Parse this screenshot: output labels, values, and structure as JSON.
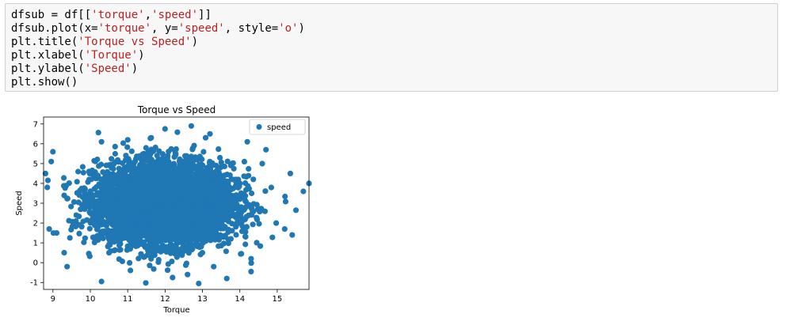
{
  "code_cell": {
    "lines": [
      [
        {
          "t": "dfsub = df[[",
          "k": "plain"
        },
        {
          "t": "'torque'",
          "k": "str"
        },
        {
          "t": ",",
          "k": "plain"
        },
        {
          "t": "'speed'",
          "k": "str"
        },
        {
          "t": "]]",
          "k": "plain"
        }
      ],
      [
        {
          "t": "dfsub.plot(x=",
          "k": "plain"
        },
        {
          "t": "'torque'",
          "k": "str"
        },
        {
          "t": ", y=",
          "k": "plain"
        },
        {
          "t": "'speed'",
          "k": "str"
        },
        {
          "t": ", style=",
          "k": "plain"
        },
        {
          "t": "'o'",
          "k": "str"
        },
        {
          "t": ")",
          "k": "plain"
        }
      ],
      [
        {
          "t": "plt.title(",
          "k": "plain"
        },
        {
          "t": "'Torque vs Speed'",
          "k": "str"
        },
        {
          "t": ")",
          "k": "plain"
        }
      ],
      [
        {
          "t": "plt.xlabel(",
          "k": "plain"
        },
        {
          "t": "'Torque'",
          "k": "str"
        },
        {
          "t": ")",
          "k": "plain"
        }
      ],
      [
        {
          "t": "plt.ylabel(",
          "k": "plain"
        },
        {
          "t": "'Speed'",
          "k": "str"
        },
        {
          "t": ")",
          "k": "plain"
        }
      ],
      [
        {
          "t": "plt.show()",
          "k": "plain"
        }
      ]
    ]
  },
  "chart_data": {
    "type": "scatter",
    "title": "Torque vs Speed",
    "xlabel": "Torque",
    "ylabel": "Speed",
    "xlim": [
      8.75,
      15.85
    ],
    "ylim": [
      -1.35,
      7.35
    ],
    "xticks": [
      9,
      10,
      11,
      12,
      13,
      14,
      15
    ],
    "yticks": [
      -1,
      0,
      1,
      2,
      3,
      4,
      5,
      6,
      7
    ],
    "grid": false,
    "legend_position": "top-right",
    "series": [
      {
        "name": "speed",
        "color": "#1f77b4",
        "marker": "circle",
        "distribution": {
          "x_center": 12.0,
          "x_spread": 0.9,
          "y_center": 3.0,
          "y_spread": 1.0,
          "n_points": 5000
        },
        "points": [
          [
            12.7,
            6.9
          ],
          [
            12.0,
            6.75
          ],
          [
            10.3,
            -0.95
          ],
          [
            12.6,
            -0.6
          ],
          [
            12.9,
            -1.05
          ],
          [
            13.65,
            -0.8
          ],
          [
            12.2,
            -0.75
          ],
          [
            9.38,
            -0.2
          ],
          [
            14.3,
            -0.45
          ],
          [
            15.85,
            4.0
          ],
          [
            15.7,
            3.6
          ],
          [
            15.5,
            2.65
          ],
          [
            15.4,
            1.4
          ],
          [
            9.0,
            5.6
          ],
          [
            8.8,
            4.5
          ],
          [
            8.85,
            3.8
          ],
          [
            8.9,
            1.7
          ],
          [
            9.1,
            1.5
          ],
          [
            10.3,
            6.1
          ],
          [
            14.7,
            5.7
          ],
          [
            15.35,
            4.5
          ],
          [
            14.2,
            6.1
          ],
          [
            11.0,
            6.2
          ],
          [
            13.2,
            6.5
          ],
          [
            9.3,
            0.5
          ],
          [
            15.2,
            1.7
          ],
          [
            14.3,
            0.2
          ],
          [
            10.5,
            0.5
          ],
          [
            13.3,
            -0.2
          ],
          [
            14.6,
            5.0
          ]
        ]
      }
    ]
  }
}
